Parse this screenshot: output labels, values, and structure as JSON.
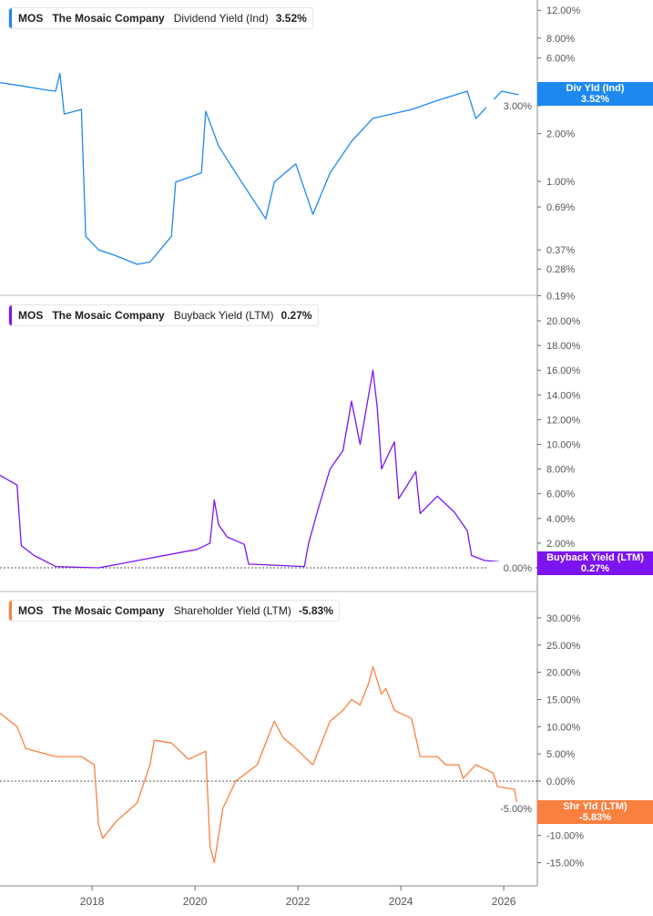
{
  "chart_data": [
    {
      "type": "line",
      "ticker": "MOS",
      "company": "The Mosaic Company",
      "metric": "Dividend Yield (Ind)",
      "last_value": "3.52%",
      "tag_label": "Div Yld (Ind)",
      "color": "#1e88f0",
      "scale": "log",
      "ylim": [
        0.19,
        14
      ],
      "yticks": [
        "12.00%",
        "8.00%",
        "6.00%",
        "3.00%",
        "2.00%",
        "1.00%",
        "0.69%",
        "0.37%",
        "0.28%",
        "0.19%"
      ],
      "ytick_values": [
        12,
        8,
        6,
        3,
        2,
        1,
        0.69,
        0.37,
        0.28,
        0.19
      ],
      "series": [
        {
          "x": [
            "2016-03",
            "2016-08",
            "2017-01",
            "2017-04",
            "2017-05",
            "2017-06",
            "2017-10",
            "2017-11",
            "2018-02",
            "2018-06",
            "2018-11",
            "2019-02",
            "2019-07",
            "2019-08",
            "2020-02",
            "2020-03",
            "2020-06",
            "2020-10",
            "2021-05",
            "2021-07",
            "2021-12",
            "2022-04",
            "2022-08",
            "2023-01",
            "2023-06",
            "2024-03",
            "2024-09",
            "2025-04",
            "2025-06",
            "2025-12",
            "2026-04"
          ],
          "y": [
            4.2,
            4.0,
            3.8,
            3.7,
            4.8,
            2.66,
            2.84,
            0.45,
            0.37,
            0.34,
            0.3,
            0.31,
            0.45,
            0.99,
            1.13,
            2.77,
            1.67,
            1.13,
            0.58,
            0.99,
            1.29,
            0.62,
            1.13,
            1.79,
            2.5,
            2.84,
            3.24,
            3.7,
            2.49,
            3.7,
            3.52
          ]
        }
      ]
    },
    {
      "type": "line",
      "ticker": "MOS",
      "company": "The Mosaic Company",
      "metric": "Buyback Yield (LTM)",
      "last_value": "0.27%",
      "tag_label": "Buyback Yield (LTM)",
      "color": "#7c14f0",
      "scale": "linear",
      "ylim": [
        -0.5,
        21.5
      ],
      "yticks": [
        "20.00%",
        "18.00%",
        "16.00%",
        "14.00%",
        "12.00%",
        "10.00%",
        "8.00%",
        "6.00%",
        "4.00%",
        "2.00%",
        "0.00%"
      ],
      "ytick_values": [
        20,
        18,
        16,
        14,
        12,
        10,
        8,
        6,
        4,
        2,
        0
      ],
      "series": [
        {
          "x": [
            "2016-03",
            "2016-07",
            "2016-08",
            "2016-11",
            "2017-04",
            "2018-02",
            "2020-01",
            "2020-04",
            "2020-05",
            "2020-06",
            "2020-08",
            "2020-12",
            "2021-01",
            "2022-02",
            "2022-03",
            "2022-05",
            "2022-08",
            "2022-11",
            "2023-01",
            "2023-03",
            "2023-05",
            "2023-06",
            "2023-07",
            "2023-08",
            "2023-10",
            "2023-11",
            "2023-12",
            "2024-04",
            "2024-05",
            "2024-09",
            "2025-01",
            "2025-04",
            "2025-05",
            "2025-08",
            "2025-11",
            "2026-03"
          ],
          "y": [
            7.5,
            6.7,
            1.8,
            1.0,
            0.1,
            0.0,
            1.5,
            2.0,
            5.5,
            3.5,
            2.5,
            1.9,
            0.3,
            0.1,
            2.0,
            4.5,
            8,
            9.5,
            13.5,
            10,
            14,
            16,
            13,
            8,
            9.5,
            10.2,
            5.6,
            7.8,
            4.4,
            5.8,
            4.5,
            3.0,
            1.0,
            0.6,
            0.5,
            0.27
          ]
        }
      ]
    },
    {
      "type": "line",
      "ticker": "MOS",
      "company": "The Mosaic Company",
      "metric": "Shareholder Yield (LTM)",
      "last_value": "-5.83%",
      "tag_label": "Shr Yld (LTM)",
      "color": "#fa8040",
      "scale": "linear",
      "ylim": [
        -17,
        34
      ],
      "yticks": [
        "30.00%",
        "25.00%",
        "20.00%",
        "15.00%",
        "10.00%",
        "5.00%",
        "0.00%",
        "-5.00%",
        "-10.00%",
        "-15.00%"
      ],
      "ytick_values": [
        30,
        25,
        20,
        15,
        10,
        5,
        0,
        -5,
        -10,
        -15
      ],
      "series": [
        {
          "x": [
            "2016-03",
            "2016-07",
            "2016-09",
            "2017-04",
            "2017-10",
            "2018-01",
            "2018-02",
            "2018-03",
            "2018-06",
            "2018-11",
            "2019-02",
            "2019-03",
            "2019-07",
            "2019-11",
            "2020-03",
            "2020-04",
            "2020-05",
            "2020-07",
            "2020-10",
            "2021-03",
            "2021-07",
            "2021-09",
            "2021-12",
            "2022-04",
            "2022-08",
            "2022-11",
            "2023-01",
            "2023-03",
            "2023-05",
            "2023-06",
            "2023-08",
            "2023-09",
            "2023-11",
            "2024-03",
            "2024-05",
            "2024-09",
            "2024-11",
            "2025-02",
            "2025-03",
            "2025-06",
            "2025-10",
            "2025-11",
            "2026-03",
            "2026-04"
          ],
          "y": [
            12.5,
            10,
            6,
            4.5,
            4.5,
            3,
            -8,
            -10.5,
            -7.5,
            -4,
            3,
            7.5,
            7,
            4,
            5.5,
            -12,
            -15,
            -5,
            0,
            3,
            11,
            8,
            6,
            3,
            11,
            13,
            15,
            14,
            18,
            21,
            16,
            17,
            13,
            11.5,
            4.5,
            4.5,
            3,
            3,
            0.5,
            3,
            1.5,
            -1,
            -1.5,
            -5.83
          ]
        }
      ]
    }
  ],
  "xaxis": {
    "ticks": [
      "2018",
      "2020",
      "2022",
      "2024",
      "2026"
    ],
    "tick_values": [
      2018,
      2020,
      2022,
      2024,
      2026
    ]
  },
  "colors": {
    "axis": "#b0b0b0",
    "tick_text": "#555555",
    "zero_line": "#555555"
  }
}
